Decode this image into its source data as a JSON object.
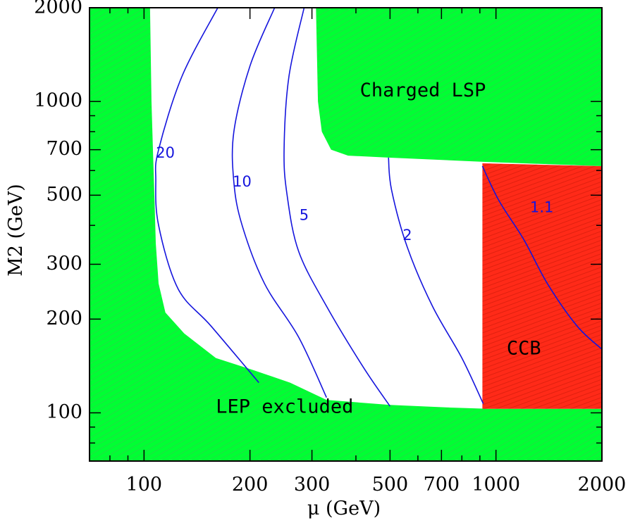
{
  "chart_data": {
    "type": "contour",
    "title": "",
    "xlabel": "μ (GeV)",
    "ylabel": "M2 (GeV)",
    "xscale": "log",
    "yscale": "log",
    "xlim": [
      70,
      2000
    ],
    "ylim": [
      70,
      2000
    ],
    "x_ticks": [
      100,
      200,
      300,
      500,
      700,
      1000,
      2000
    ],
    "y_ticks": [
      100,
      200,
      300,
      500,
      700,
      1000,
      2000
    ],
    "grid": false,
    "colors": {
      "allowed_region": "#00ff33",
      "ccb_region": "#ff2a18",
      "contour": "#1515dd",
      "background": "#ffffff"
    },
    "regions": [
      {
        "name": "lep",
        "label": "LEP excluded",
        "color": "#00ff33",
        "boundary": [
          [
            104,
            2000
          ],
          [
            105,
            1000
          ],
          [
            106,
            700
          ],
          [
            107,
            500
          ],
          [
            108,
            350
          ],
          [
            110,
            260
          ],
          [
            115,
            210
          ],
          [
            130,
            180
          ],
          [
            160,
            150
          ],
          [
            205,
            137
          ],
          [
            260,
            125
          ],
          [
            330,
            110
          ],
          [
            500,
            106
          ],
          [
            740,
            104
          ],
          [
            950,
            103
          ],
          [
            2000,
            103
          ]
        ]
      },
      {
        "name": "charged-lsp",
        "label": "Charged LSP",
        "color": "#00ff33",
        "boundary": [
          [
            308,
            2000
          ],
          [
            312,
            1000
          ],
          [
            320,
            800
          ],
          [
            340,
            700
          ],
          [
            380,
            670
          ],
          [
            500,
            660
          ],
          [
            920,
            640
          ],
          [
            2000,
            620
          ],
          [
            2000,
            2000
          ]
        ]
      },
      {
        "name": "ccb",
        "label": "CCB",
        "color": "#ff2a18",
        "boundary": [
          [
            915,
            633
          ],
          [
            2000,
            620
          ],
          [
            2000,
            103
          ],
          [
            915,
            103
          ]
        ]
      }
    ],
    "contours": [
      {
        "label": "20",
        "points": [
          [
            162,
            2000
          ],
          [
            128,
            1200
          ],
          [
            110,
            700
          ],
          [
            108,
            560
          ],
          [
            110,
            400
          ],
          [
            125,
            250
          ],
          [
            155,
            190
          ],
          [
            212,
            125
          ]
        ],
        "label_at": [
          115,
          680
        ]
      },
      {
        "label": "10",
        "points": [
          [
            235,
            2000
          ],
          [
            200,
            1300
          ],
          [
            180,
            800
          ],
          [
            180,
            550
          ],
          [
            190,
            400
          ],
          [
            220,
            260
          ],
          [
            275,
            175
          ],
          [
            330,
            112
          ]
        ],
        "label_at": [
          190,
          550
        ]
      },
      {
        "label": "5",
        "points": [
          [
            285,
            2000
          ],
          [
            258,
            1200
          ],
          [
            250,
            700
          ],
          [
            255,
            500
          ],
          [
            275,
            330
          ],
          [
            330,
            220
          ],
          [
            420,
            140
          ],
          [
            500,
            105
          ]
        ],
        "label_at": [
          285,
          430
        ]
      },
      {
        "label": "2",
        "points": [
          [
            495,
            660
          ],
          [
            505,
            520
          ],
          [
            560,
            340
          ],
          [
            660,
            220
          ],
          [
            800,
            150
          ],
          [
            920,
            107
          ]
        ],
        "label_at": [
          560,
          370
        ]
      },
      {
        "label": "1.1",
        "points": [
          [
            915,
            620
          ],
          [
            1020,
            480
          ],
          [
            1200,
            360
          ],
          [
            1400,
            260
          ],
          [
            1700,
            190
          ],
          [
            2000,
            160
          ]
        ],
        "label_at": [
          1350,
          455
        ]
      }
    ],
    "annotations": [
      {
        "text": "Charged LSP",
        "at": [
          620,
          1080
        ]
      },
      {
        "text": "CCB",
        "at": [
          1200,
          160
        ]
      },
      {
        "text": "LEP excluded",
        "at": [
          160,
          104
        ]
      }
    ]
  }
}
